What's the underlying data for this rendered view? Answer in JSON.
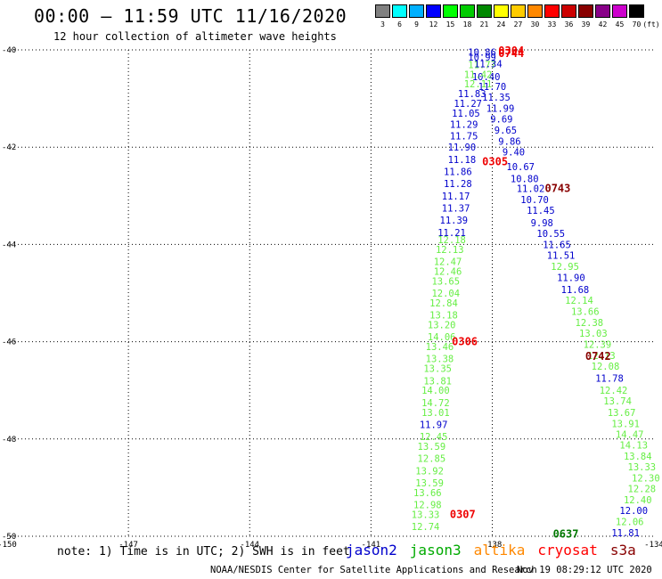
{
  "header": {
    "title": "00:00 – 11:59 UTC 11/16/2020",
    "subtitle": "12 hour collection of altimeter wave heights"
  },
  "legend": {
    "unit_label": "(ft)",
    "bins": [
      {
        "label": "3",
        "color": "#808080"
      },
      {
        "label": "6",
        "color": "#00ffff"
      },
      {
        "label": "9",
        "color": "#00b0ff"
      },
      {
        "label": "12",
        "color": "#0000ff"
      },
      {
        "label": "15",
        "color": "#00ff00"
      },
      {
        "label": "18",
        "color": "#00cc00"
      },
      {
        "label": "21",
        "color": "#008800"
      },
      {
        "label": "24",
        "color": "#ffff00"
      },
      {
        "label": "27",
        "color": "#ffcc00"
      },
      {
        "label": "30",
        "color": "#ff8800"
      },
      {
        "label": "33",
        "color": "#ff0000"
      },
      {
        "label": "36",
        "color": "#cc0000"
      },
      {
        "label": "39",
        "color": "#880000"
      },
      {
        "label": "42",
        "color": "#880088"
      },
      {
        "label": "45",
        "color": "#cc00cc"
      },
      {
        "label": "70",
        "color": "#000000"
      }
    ]
  },
  "footer": {
    "note": "note: 1) Time is in UTC; 2) SWH is in feet",
    "satellites": [
      {
        "name": "jason2",
        "color": "#0000cc"
      },
      {
        "name": "jason3",
        "color": "#00aa00"
      },
      {
        "name": "altika",
        "color": "#ff8800"
      },
      {
        "name": "cryosat",
        "color": "#ff0000"
      },
      {
        "name": "s3a",
        "color": "#880000"
      }
    ],
    "credit": "NOAA/NESDIS Center for Satellite Applications and Research",
    "timestamp": "Nov 19 08:29:12 UTC 2020"
  },
  "chart_data": {
    "type": "scatter",
    "xlim": [
      -150,
      -134
    ],
    "ylim": [
      -50,
      -40
    ],
    "x_ticks": [
      "-150",
      "-147",
      "-144",
      "-141",
      "-138",
      "-134"
    ],
    "x_tick_values": [
      -150,
      -147,
      -144,
      -141,
      -138,
      -134
    ],
    "y_ticks": [
      "-40",
      "-42",
      "-44",
      "-46",
      "-48",
      "-50"
    ],
    "y_tick_values": [
      -40,
      -42,
      -44,
      -46,
      -48,
      -50
    ],
    "grid": true,
    "colors": {
      "blue": "#0000cc",
      "green": "#66ee44",
      "red": "#ee0000",
      "maroon": "#880000",
      "darkgreen": "#007700"
    },
    "labels": [
      {
        "x": -138.6,
        "y": -40.05,
        "text": "10.86",
        "c": "blue"
      },
      {
        "x": -138.6,
        "y": -40.15,
        "text": "10.99",
        "c": "blue"
      },
      {
        "x": -138.6,
        "y": -40.3,
        "text": "11.77",
        "c": "green"
      },
      {
        "x": -138.45,
        "y": -40.28,
        "text": "11.34",
        "c": "blue"
      },
      {
        "x": -138.5,
        "y": -40.55,
        "text": "10.40",
        "c": "blue"
      },
      {
        "x": -138.7,
        "y": -40.5,
        "text": "11.42",
        "c": "green"
      },
      {
        "x": -138.7,
        "y": -40.7,
        "text": "12.11",
        "c": "green"
      },
      {
        "x": -138.35,
        "y": -40.75,
        "text": "11.70",
        "c": "blue"
      },
      {
        "x": -138.85,
        "y": -40.9,
        "text": "11.83",
        "c": "blue"
      },
      {
        "x": -138.25,
        "y": -40.97,
        "text": "11.35",
        "c": "blue"
      },
      {
        "x": -138.95,
        "y": -41.1,
        "text": "11.27",
        "c": "blue"
      },
      {
        "x": -138.15,
        "y": -41.2,
        "text": "11.99",
        "c": "blue"
      },
      {
        "x": -139.0,
        "y": -41.3,
        "text": "11.05",
        "c": "blue"
      },
      {
        "x": -138.05,
        "y": -41.42,
        "text": "9.69",
        "c": "blue"
      },
      {
        "x": -139.05,
        "y": -41.53,
        "text": "11.29",
        "c": "blue"
      },
      {
        "x": -137.95,
        "y": -41.65,
        "text": "9.65",
        "c": "blue"
      },
      {
        "x": -139.05,
        "y": -41.77,
        "text": "11.75",
        "c": "blue"
      },
      {
        "x": -137.85,
        "y": -41.88,
        "text": "9.86",
        "c": "blue"
      },
      {
        "x": -139.1,
        "y": -42.0,
        "text": "11.90",
        "c": "blue"
      },
      {
        "x": -137.75,
        "y": -42.1,
        "text": "9.40",
        "c": "blue"
      },
      {
        "x": -139.1,
        "y": -42.25,
        "text": "11.18",
        "c": "blue"
      },
      {
        "x": -137.65,
        "y": -42.4,
        "text": "10.67",
        "c": "blue"
      },
      {
        "x": -139.2,
        "y": -42.5,
        "text": "11.86",
        "c": "blue"
      },
      {
        "x": -137.55,
        "y": -42.65,
        "text": "10.80",
        "c": "blue"
      },
      {
        "x": -139.2,
        "y": -42.75,
        "text": "11.28",
        "c": "blue"
      },
      {
        "x": -137.4,
        "y": -42.85,
        "text": "11.02",
        "c": "blue"
      },
      {
        "x": -139.25,
        "y": -43.0,
        "text": "11.17",
        "c": "blue"
      },
      {
        "x": -137.3,
        "y": -43.08,
        "text": "10.70",
        "c": "blue"
      },
      {
        "x": -139.25,
        "y": -43.25,
        "text": "11.37",
        "c": "blue"
      },
      {
        "x": -137.15,
        "y": -43.3,
        "text": "11.45",
        "c": "blue"
      },
      {
        "x": -139.3,
        "y": -43.5,
        "text": "11.39",
        "c": "blue"
      },
      {
        "x": -137.05,
        "y": -43.55,
        "text": "9.98",
        "c": "blue"
      },
      {
        "x": -139.35,
        "y": -43.75,
        "text": "11.21",
        "c": "blue"
      },
      {
        "x": -136.9,
        "y": -43.77,
        "text": "10.55",
        "c": "blue"
      },
      {
        "x": -139.35,
        "y": -43.9,
        "text": "12.18",
        "c": "green"
      },
      {
        "x": -136.75,
        "y": -44.0,
        "text": "11.65",
        "c": "blue"
      },
      {
        "x": -139.4,
        "y": -44.1,
        "text": "12.13",
        "c": "green"
      },
      {
        "x": -136.65,
        "y": -44.22,
        "text": "11.51",
        "c": "blue"
      },
      {
        "x": -139.45,
        "y": -44.35,
        "text": "12.47",
        "c": "green"
      },
      {
        "x": -136.55,
        "y": -44.45,
        "text": "12.95",
        "c": "green"
      },
      {
        "x": -139.45,
        "y": -44.55,
        "text": "12.46",
        "c": "green"
      },
      {
        "x": -136.4,
        "y": -44.68,
        "text": "11.90",
        "c": "blue"
      },
      {
        "x": -139.5,
        "y": -44.75,
        "text": "13.65",
        "c": "green"
      },
      {
        "x": -136.3,
        "y": -44.93,
        "text": "11.68",
        "c": "blue"
      },
      {
        "x": -139.5,
        "y": -45.0,
        "text": "12.04",
        "c": "green"
      },
      {
        "x": -136.2,
        "y": -45.15,
        "text": "12.14",
        "c": "green"
      },
      {
        "x": -139.55,
        "y": -45.2,
        "text": "12.84",
        "c": "green"
      },
      {
        "x": -136.05,
        "y": -45.38,
        "text": "13.66",
        "c": "green"
      },
      {
        "x": -139.55,
        "y": -45.45,
        "text": "13.18",
        "c": "green"
      },
      {
        "x": -135.95,
        "y": -45.6,
        "text": "12.38",
        "c": "green"
      },
      {
        "x": -139.6,
        "y": -45.65,
        "text": "13.20",
        "c": "green"
      },
      {
        "x": -135.85,
        "y": -45.82,
        "text": "13.03",
        "c": "green"
      },
      {
        "x": -139.6,
        "y": -45.9,
        "text": "14.06",
        "c": "green"
      },
      {
        "x": -135.75,
        "y": -46.05,
        "text": "12.39",
        "c": "green"
      },
      {
        "x": -139.65,
        "y": -46.1,
        "text": "13.46",
        "c": "green"
      },
      {
        "x": -135.65,
        "y": -46.28,
        "text": "12.13",
        "c": "green"
      },
      {
        "x": -139.65,
        "y": -46.35,
        "text": "13.38",
        "c": "green"
      },
      {
        "x": -135.55,
        "y": -46.5,
        "text": "12.08",
        "c": "green"
      },
      {
        "x": -139.7,
        "y": -46.55,
        "text": "13.35",
        "c": "green"
      },
      {
        "x": -135.45,
        "y": -46.75,
        "text": "11.78",
        "c": "blue"
      },
      {
        "x": -139.7,
        "y": -46.8,
        "text": "13.81",
        "c": "green"
      },
      {
        "x": -135.35,
        "y": -47.0,
        "text": "12.42",
        "c": "green"
      },
      {
        "x": -139.75,
        "y": -47.0,
        "text": "14.00",
        "c": "green"
      },
      {
        "x": -135.25,
        "y": -47.22,
        "text": "13.74",
        "c": "green"
      },
      {
        "x": -139.75,
        "y": -47.25,
        "text": "14.72",
        "c": "green"
      },
      {
        "x": -135.15,
        "y": -47.45,
        "text": "13.67",
        "c": "green"
      },
      {
        "x": -139.75,
        "y": -47.45,
        "text": "13.01",
        "c": "green"
      },
      {
        "x": -135.05,
        "y": -47.68,
        "text": "13.91",
        "c": "green"
      },
      {
        "x": -139.8,
        "y": -47.7,
        "text": "11.97",
        "c": "blue"
      },
      {
        "x": -134.95,
        "y": -47.9,
        "text": "14.47",
        "c": "green"
      },
      {
        "x": -139.8,
        "y": -47.95,
        "text": "12.45",
        "c": "green"
      },
      {
        "x": -134.85,
        "y": -48.12,
        "text": "14.13",
        "c": "green"
      },
      {
        "x": -139.85,
        "y": -48.15,
        "text": "13.59",
        "c": "green"
      },
      {
        "x": -134.75,
        "y": -48.35,
        "text": "13.84",
        "c": "green"
      },
      {
        "x": -139.85,
        "y": -48.4,
        "text": "12.85",
        "c": "green"
      },
      {
        "x": -134.65,
        "y": -48.57,
        "text": "13.33",
        "c": "green"
      },
      {
        "x": -139.9,
        "y": -48.65,
        "text": "13.92",
        "c": "green"
      },
      {
        "x": -134.55,
        "y": -48.8,
        "text": "12.30",
        "c": "green"
      },
      {
        "x": -139.9,
        "y": -48.9,
        "text": "13.59",
        "c": "green"
      },
      {
        "x": -134.65,
        "y": -49.02,
        "text": "12.28",
        "c": "green"
      },
      {
        "x": -139.95,
        "y": -49.1,
        "text": "13.66",
        "c": "green"
      },
      {
        "x": -134.75,
        "y": -49.25,
        "text": "12.40",
        "c": "green"
      },
      {
        "x": -139.95,
        "y": -49.35,
        "text": "12.98",
        "c": "green"
      },
      {
        "x": -134.85,
        "y": -49.47,
        "text": "12.00",
        "c": "blue"
      },
      {
        "x": -140.0,
        "y": -49.55,
        "text": "13.33",
        "c": "green"
      },
      {
        "x": -134.95,
        "y": -49.7,
        "text": "12.06",
        "c": "green"
      },
      {
        "x": -140.0,
        "y": -49.8,
        "text": "12.74",
        "c": "green"
      },
      {
        "x": -135.05,
        "y": -49.93,
        "text": "11.81",
        "c": "blue"
      },
      {
        "x": -137.85,
        "y": -40.02,
        "text": "0304",
        "c": "red",
        "bold": true
      },
      {
        "x": -137.85,
        "y": -40.07,
        "text": "0744",
        "c": "red",
        "bold": true
      },
      {
        "x": -138.25,
        "y": -42.3,
        "text": "0305",
        "c": "red",
        "bold": true
      },
      {
        "x": -136.7,
        "y": -42.85,
        "text": "0743",
        "c": "maroon",
        "bold": true
      },
      {
        "x": -139.0,
        "y": -46.0,
        "text": "0306",
        "c": "red",
        "bold": true
      },
      {
        "x": -135.7,
        "y": -46.3,
        "text": "0742",
        "c": "maroon",
        "bold": true
      },
      {
        "x": -139.05,
        "y": -49.55,
        "text": "0307",
        "c": "red",
        "bold": true
      },
      {
        "x": -136.5,
        "y": -49.95,
        "text": "0637",
        "c": "darkgreen",
        "bold": true
      }
    ]
  }
}
